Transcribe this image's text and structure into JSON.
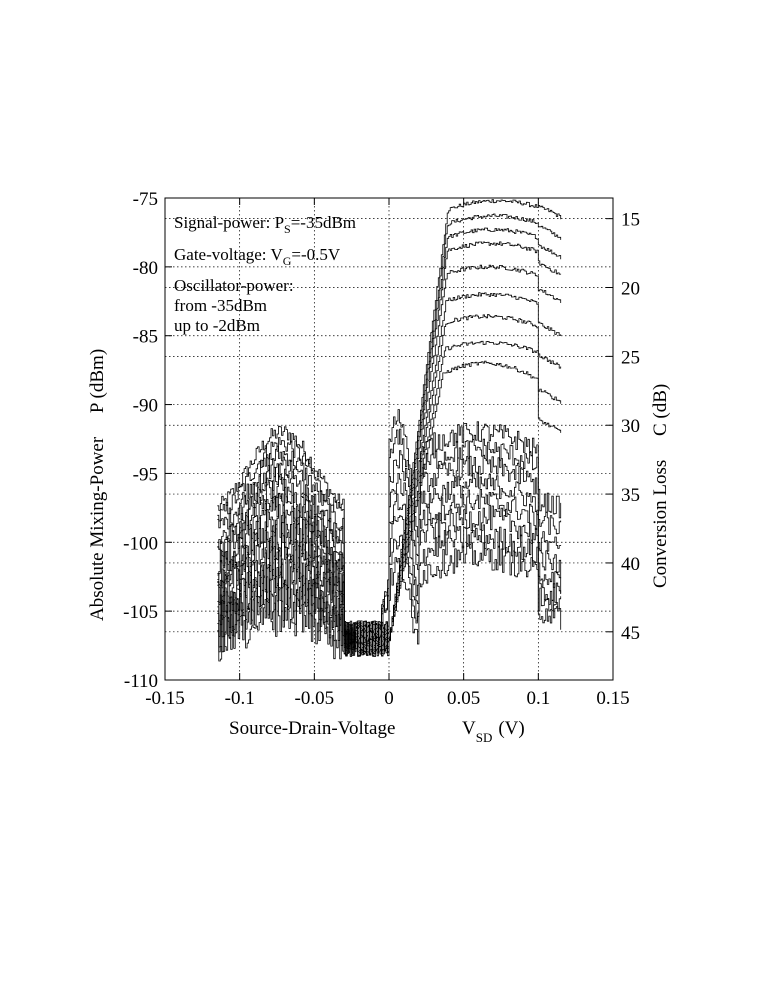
{
  "chart_data": {
    "type": "line",
    "title": "",
    "xlabel_main": "Source-Drain-Voltage",
    "xlabel_symbol": "V",
    "xlabel_sub": "SD",
    "xlabel_unit": "(V)",
    "ylabel_left": "Absolute Mixing-Power     P (dBm)",
    "ylabel_right": "Conversion Loss     C (dB)",
    "xlim": [
      -0.15,
      0.15
    ],
    "ylim": [
      -110,
      -75
    ],
    "x_ticks": [
      "-0.15",
      "-0.1",
      "-0.05",
      "0",
      "0.05",
      "0.1",
      "0.15"
    ],
    "x_tick_values": [
      -0.15,
      -0.1,
      -0.05,
      0,
      0.05,
      0.1,
      0.15
    ],
    "y_ticks": [
      "-75",
      "-80",
      "-85",
      "-90",
      "-95",
      "-100",
      "-105",
      "-110"
    ],
    "y_tick_values": [
      -75,
      -80,
      -85,
      -90,
      -95,
      -100,
      -105,
      -110
    ],
    "right_ticks": [
      "15",
      "20",
      "25",
      "30",
      "35",
      "40",
      "45"
    ],
    "right_tick_power": [
      -76.5,
      -81.5,
      -86.5,
      -91.5,
      -96.5,
      -101.5,
      -106.5
    ],
    "grid": true,
    "annotations": {
      "signal_prefix": "Signal-power: P",
      "signal_sub": "S",
      "signal_value": "=-35dBm",
      "gate_prefix": "Gate-voltage: V",
      "gate_sub": "G",
      "gate_value": "=-0.5V",
      "osc_line1": "Oscillator-power:",
      "osc_line2": "from -35dBm",
      "osc_line3": "up to  -2dBm"
    },
    "series_shape": {
      "x_start": -0.115,
      "x_end": 0.115,
      "left_lobe": [
        [
          -0.115,
          -107
        ],
        [
          -0.105,
          -104
        ],
        [
          -0.09,
          -100
        ],
        [
          -0.075,
          -97.5
        ],
        [
          -0.06,
          -98.5
        ],
        [
          -0.045,
          -102
        ],
        [
          -0.035,
          -106
        ],
        [
          -0.02,
          -107.5
        ],
        [
          -0.008,
          -106.8
        ]
      ],
      "rise_x": 0.0
    },
    "series": [
      {
        "left_peak": -92,
        "left_base": -98.5,
        "right_peak": -75.2,
        "right_peak_x": 0.072,
        "right_end": -76.4
      },
      {
        "left_peak": -92.8,
        "left_base": -99.2,
        "right_peak": -76.3,
        "right_peak_x": 0.07,
        "right_end": -77.9
      },
      {
        "left_peak": -93.6,
        "left_base": -100,
        "right_peak": -77.3,
        "right_peak_x": 0.069,
        "right_end": -79.3
      },
      {
        "left_peak": -94.4,
        "left_base": -100.8,
        "right_peak": -78.3,
        "right_peak_x": 0.068,
        "right_end": -80.6
      },
      {
        "left_peak": -95.2,
        "left_base": -101.5,
        "right_peak": -80.0,
        "right_peak_x": 0.067,
        "right_end": -82.5
      },
      {
        "left_peak": -96.0,
        "left_base": -102.1,
        "right_peak": -82.0,
        "right_peak_x": 0.066,
        "right_end": -85.0
      },
      {
        "left_peak": -96.8,
        "left_base": -102.6,
        "right_peak": -83.6,
        "right_peak_x": 0.065,
        "right_end": -87.3
      },
      {
        "left_peak": -97.6,
        "left_base": -103.1,
        "right_peak": -85.5,
        "right_peak_x": 0.065,
        "right_end": -89.8
      },
      {
        "left_peak": -98.4,
        "left_base": -103.6,
        "right_peak": -87.0,
        "right_peak_x": 0.064,
        "right_end": -92.0
      },
      {
        "left_peak": -99.2,
        "left_base": -104.1,
        "right_peak": -92.0,
        "right_peak_x": 0.06,
        "right_end": -97.5
      },
      {
        "left_peak": -100.0,
        "left_base": -104.6,
        "right_peak": -93.2,
        "right_peak_x": 0.06,
        "right_end": -99.0
      },
      {
        "left_peak": -100.8,
        "left_base": -105.1,
        "right_peak": -94.5,
        "right_peak_x": 0.06,
        "right_end": -100.5
      },
      {
        "left_peak": -101.6,
        "left_base": -105.5,
        "right_peak": -95.8,
        "right_peak_x": 0.06,
        "right_end": -101.8
      },
      {
        "left_peak": -102.4,
        "left_base": -106.0,
        "right_peak": -97.0,
        "right_peak_x": 0.06,
        "right_end": -103.0
      },
      {
        "left_peak": -103.2,
        "left_base": -106.4,
        "right_peak": -98.2,
        "right_peak_x": 0.06,
        "right_end": -104.0
      },
      {
        "left_peak": -104.0,
        "left_base": -106.8,
        "right_peak": -99.6,
        "right_peak_x": 0.06,
        "right_end": -104.8
      },
      {
        "left_peak": -104.8,
        "left_base": -107.2,
        "right_peak": -101.0,
        "right_peak_x": 0.06,
        "right_end": -105.4
      }
    ]
  }
}
